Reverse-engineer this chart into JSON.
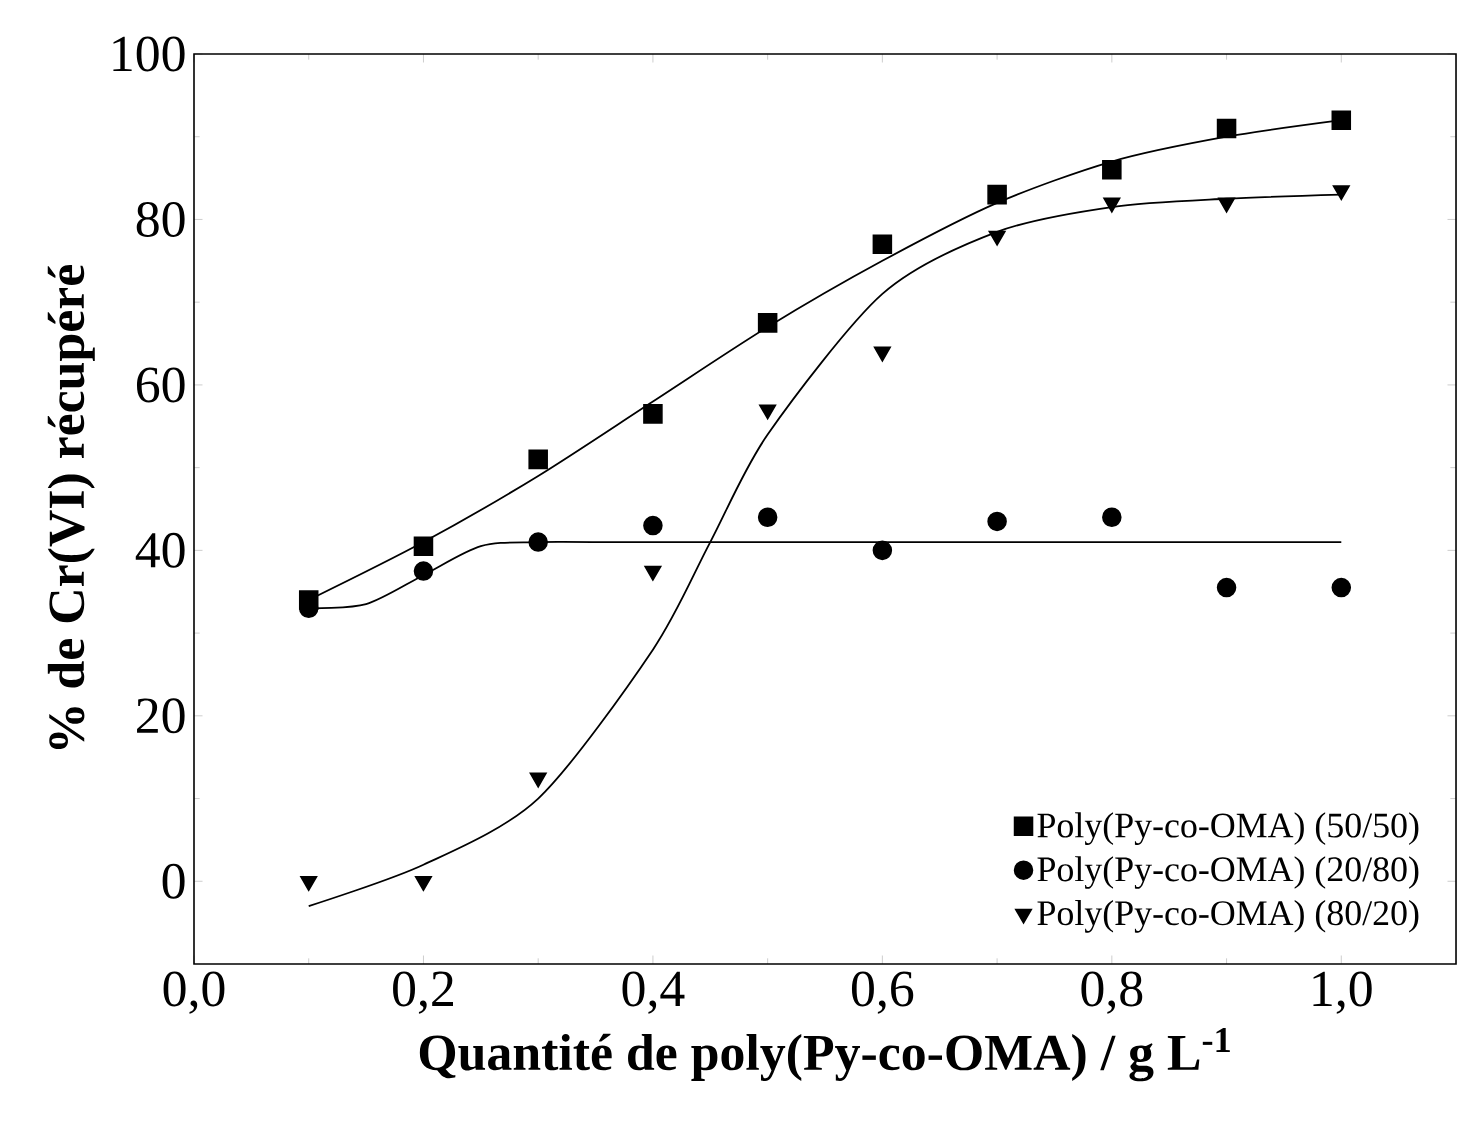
{
  "chart_data": {
    "type": "scatter",
    "xlabel": "Quantité de poly(Py-co-OMA) / g L$^{-1}$",
    "ylabel": "% de Cr(VI) récupéré",
    "xlim": [
      0,
      1.1
    ],
    "ylim": [
      -10,
      100
    ],
    "xticks": [
      {
        "value": 0,
        "label": "0,0"
      },
      {
        "value": 0.2,
        "label": "0,2"
      },
      {
        "value": 0.4,
        "label": "0,4"
      },
      {
        "value": 0.6,
        "label": "0,6"
      },
      {
        "value": 0.8,
        "label": "0,8"
      },
      {
        "value": 1.0,
        "label": "1,0"
      }
    ],
    "yticks": [
      0,
      20,
      40,
      60,
      80,
      100
    ],
    "legend": "bottom right",
    "grid": false,
    "x": [
      0.1,
      0.2,
      0.3,
      0.4,
      0.5,
      0.6,
      0.7,
      0.8,
      0.9,
      1.0
    ],
    "series": [
      {
        "name": "Poly(Py-co-OMA) (50/50)",
        "color": "#000000",
        "marker": "square",
        "values": [
          34,
          40.5,
          51,
          56.5,
          67.5,
          77,
          83,
          86,
          91,
          92
        ]
      },
      {
        "name": "Poly(Py-co-OMA) (20/80)",
        "color": "#000000",
        "marker": "circle",
        "values": [
          33,
          37.5,
          41,
          43,
          44,
          40,
          43.5,
          44,
          35.5,
          35.5
        ]
      },
      {
        "name": "Poly(Py-co-OMA) (80/20)",
        "color": "#000000",
        "marker": "triangle",
        "values": [
          0,
          0,
          12.5,
          37.5,
          57,
          64,
          78,
          82,
          82,
          83.5
        ]
      },
      {
        "type": "line",
        "color": "#000000",
        "marker": "none",
        "line_style": "solid",
        "x": [
          0.1,
          0.2,
          0.3,
          0.4,
          0.5,
          0.6,
          0.7,
          0.8,
          0.9,
          1.0
        ],
        "values": [
          34,
          41,
          49,
          58,
          67,
          75,
          82,
          87,
          90,
          92
        ]
      },
      {
        "type": "line",
        "color": "#000000",
        "marker": "none",
        "line_style": "solid",
        "x": [
          0.1,
          0.15,
          0.2,
          0.25,
          0.3,
          0.4,
          1.0
        ],
        "values": [
          33,
          33.5,
          37,
          40.5,
          41,
          41,
          41
        ]
      },
      {
        "type": "line",
        "color": "#000000",
        "marker": "none",
        "line_style": "solid",
        "x": [
          0.1,
          0.2,
          0.3,
          0.4,
          0.45,
          0.5,
          0.6,
          0.7,
          0.8,
          0.9,
          1.0
        ],
        "values": [
          -3,
          2,
          10,
          28,
          41,
          54,
          71,
          78.5,
          81.5,
          82.5,
          83
        ]
      }
    ]
  }
}
